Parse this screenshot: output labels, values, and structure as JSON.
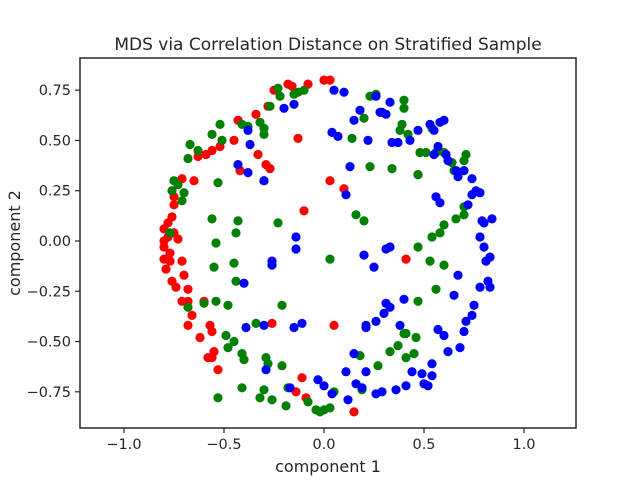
{
  "chart_data": {
    "type": "scatter",
    "title": "MDS via Correlation Distance on Stratified Sample",
    "xlabel": "component 1",
    "ylabel": "component 2",
    "xlim": [
      -1.22,
      1.26
    ],
    "ylim": [
      -0.93,
      0.91
    ],
    "xticks": [
      -1.0,
      -0.5,
      0.0,
      0.5,
      1.0
    ],
    "xtick_labels": [
      "−1.0",
      "−0.5",
      "0.0",
      "0.5",
      "1.0"
    ],
    "yticks": [
      0.75,
      0.5,
      0.25,
      0.0,
      -0.25,
      -0.5,
      -0.75
    ],
    "ytick_labels": [
      "0.75",
      "0.50",
      "0.25",
      "0.00",
      "−0.25",
      "−0.50",
      "−0.75"
    ],
    "grid": false,
    "legend": false,
    "series": [
      {
        "color": "#ff0000",
        "points": [
          [
            -0.16,
            0.77
          ],
          [
            -0.18,
            0.78
          ],
          [
            -0.08,
            0.78
          ],
          [
            0.0,
            0.8
          ],
          [
            0.03,
            0.8
          ],
          [
            -0.25,
            0.75
          ],
          [
            -0.28,
            0.67
          ],
          [
            -0.34,
            0.63
          ],
          [
            -0.43,
            0.6
          ],
          [
            -0.45,
            0.5
          ],
          [
            -0.52,
            0.47
          ],
          [
            -0.56,
            0.45
          ],
          [
            -0.59,
            0.43
          ],
          [
            -0.63,
            0.42
          ],
          [
            -0.33,
            0.43
          ],
          [
            -0.13,
            0.51
          ],
          [
            -0.42,
            0.35
          ],
          [
            -0.29,
            0.38
          ],
          [
            -0.65,
            0.3
          ],
          [
            -0.71,
            0.31
          ],
          [
            -0.27,
            0.36
          ],
          [
            -0.75,
            0.22
          ],
          [
            -0.75,
            0.18
          ],
          [
            0.03,
            0.3
          ],
          [
            0.1,
            0.26
          ],
          [
            -0.3,
            0.3
          ],
          [
            -0.1,
            0.15
          ],
          [
            0.47,
            0.33
          ],
          [
            -0.76,
            0.12
          ],
          [
            -0.78,
            0.09
          ],
          [
            -0.8,
            0.06
          ],
          [
            -0.75,
            0.04
          ],
          [
            -0.78,
            0.02
          ],
          [
            -0.8,
            0.0
          ],
          [
            -0.73,
            0.01
          ],
          [
            -0.8,
            -0.03
          ],
          [
            -0.77,
            -0.06
          ],
          [
            -0.8,
            -0.09
          ],
          [
            -0.79,
            -0.14
          ],
          [
            -0.77,
            -0.1
          ],
          [
            -0.71,
            -0.1
          ],
          [
            -0.76,
            -0.2
          ],
          [
            -0.7,
            -0.17
          ],
          [
            -0.68,
            -0.24
          ],
          [
            -0.74,
            -0.23
          ],
          [
            -0.68,
            -0.3
          ],
          [
            -0.71,
            -0.3
          ],
          [
            -0.6,
            -0.3
          ],
          [
            -0.66,
            -0.37
          ],
          [
            -0.68,
            -0.42
          ],
          [
            -0.57,
            -0.42
          ],
          [
            -0.56,
            -0.45
          ],
          [
            -0.62,
            -0.48
          ],
          [
            -0.55,
            -0.55
          ],
          [
            -0.58,
            -0.58
          ],
          [
            -0.56,
            -0.58
          ],
          [
            -0.53,
            -0.64
          ],
          [
            -0.26,
            -0.41
          ],
          [
            0.05,
            -0.42
          ],
          [
            -0.11,
            -0.68
          ],
          [
            -0.14,
            -0.75
          ],
          [
            -0.09,
            -0.78
          ],
          [
            0.15,
            -0.85
          ],
          [
            0.41,
            -0.09
          ]
        ]
      },
      {
        "color": "#008000",
        "points": [
          [
            -0.23,
            0.76
          ],
          [
            -0.22,
            0.72
          ],
          [
            -0.15,
            0.73
          ],
          [
            -0.13,
            0.74
          ],
          [
            -0.1,
            0.75
          ],
          [
            -0.27,
            0.67
          ],
          [
            -0.32,
            0.59
          ],
          [
            -0.3,
            0.56
          ],
          [
            -0.41,
            0.58
          ],
          [
            -0.52,
            0.58
          ],
          [
            -0.51,
            0.5
          ],
          [
            -0.56,
            0.53
          ],
          [
            -0.67,
            0.48
          ],
          [
            -0.63,
            0.45
          ],
          [
            -0.68,
            0.41
          ],
          [
            -0.75,
            0.3
          ],
          [
            -0.73,
            0.28
          ],
          [
            -0.7,
            0.24
          ],
          [
            -0.71,
            0.2
          ],
          [
            -0.76,
            0.25
          ],
          [
            -0.53,
            0.29
          ],
          [
            -0.23,
            0.09
          ],
          [
            0.23,
            0.37
          ],
          [
            0.2,
            0.1
          ],
          [
            0.16,
            0.13
          ],
          [
            -0.43,
            0.1
          ],
          [
            -0.56,
            0.11
          ],
          [
            -0.54,
            -0.01
          ],
          [
            -0.44,
            0.04
          ],
          [
            -0.45,
            -0.11
          ],
          [
            -0.55,
            -0.13
          ],
          [
            -0.77,
            0.04
          ],
          [
            0.03,
            -0.09
          ],
          [
            -0.44,
            -0.2
          ],
          [
            -0.6,
            -0.31
          ],
          [
            -0.54,
            -0.3
          ],
          [
            -0.48,
            -0.32
          ],
          [
            -0.68,
            -0.33
          ],
          [
            -0.21,
            -0.32
          ],
          [
            -0.34,
            -0.41
          ],
          [
            -0.49,
            -0.47
          ],
          [
            -0.45,
            -0.5
          ],
          [
            -0.41,
            -0.56
          ],
          [
            -0.48,
            -0.53
          ],
          [
            -0.4,
            -0.59
          ],
          [
            -0.29,
            -0.58
          ],
          [
            -0.28,
            -0.61
          ],
          [
            -0.21,
            -0.62
          ],
          [
            -0.18,
            -0.73
          ],
          [
            -0.3,
            -0.74
          ],
          [
            -0.41,
            -0.73
          ],
          [
            -0.53,
            -0.78
          ],
          [
            -0.32,
            -0.78
          ],
          [
            -0.26,
            -0.79
          ],
          [
            -0.19,
            -0.82
          ],
          [
            -0.08,
            -0.8
          ],
          [
            -0.04,
            -0.84
          ],
          [
            -0.02,
            -0.85
          ],
          [
            0.0,
            -0.84
          ],
          [
            0.03,
            -0.83
          ],
          [
            0.05,
            -0.75
          ],
          [
            0.19,
            -0.74
          ],
          [
            0.27,
            -0.62
          ],
          [
            0.18,
            -0.57
          ],
          [
            0.33,
            -0.55
          ],
          [
            0.41,
            -0.58
          ],
          [
            0.45,
            -0.56
          ],
          [
            0.46,
            -0.48
          ],
          [
            0.4,
            -0.46
          ],
          [
            0.37,
            -0.52
          ],
          [
            0.47,
            -0.3
          ],
          [
            0.41,
            -0.46
          ],
          [
            0.56,
            -0.24
          ],
          [
            0.6,
            -0.12
          ],
          [
            0.53,
            -0.1
          ],
          [
            0.47,
            -0.03
          ],
          [
            0.54,
            0.02
          ],
          [
            0.58,
            0.04
          ],
          [
            0.6,
            0.08
          ],
          [
            0.7,
            0.13
          ],
          [
            0.66,
            0.11
          ],
          [
            0.7,
            0.17
          ],
          [
            0.65,
            0.35
          ],
          [
            0.7,
            0.4
          ],
          [
            0.71,
            0.43
          ],
          [
            0.64,
            0.39
          ],
          [
            0.56,
            0.44
          ],
          [
            0.51,
            0.44
          ],
          [
            0.48,
            0.44
          ],
          [
            0.34,
            0.36
          ],
          [
            0.38,
            0.55
          ],
          [
            0.42,
            0.53
          ],
          [
            0.4,
            0.66
          ],
          [
            0.4,
            0.7
          ],
          [
            0.54,
            0.56
          ],
          [
            0.6,
            0.44
          ],
          [
            -0.3,
            0.53
          ],
          [
            -0.38,
            0.57
          ],
          [
            0.39,
            0.58
          ],
          [
            0.47,
            0.33
          ],
          [
            0.14,
            0.51
          ],
          [
            0.2,
            0.61
          ],
          [
            0.26,
            0.73
          ],
          [
            0.23,
            0.72
          ]
        ]
      },
      {
        "color": "#0000ff",
        "points": [
          [
            0.05,
            0.75
          ],
          [
            0.1,
            0.74
          ],
          [
            0.26,
            0.72
          ],
          [
            0.28,
            0.64
          ],
          [
            0.33,
            0.69
          ],
          [
            0.31,
            0.63
          ],
          [
            0.34,
            0.49
          ],
          [
            0.37,
            0.49
          ],
          [
            0.43,
            0.5
          ],
          [
            0.47,
            0.55
          ],
          [
            0.55,
            0.55
          ],
          [
            0.53,
            0.58
          ],
          [
            0.58,
            0.59
          ],
          [
            0.6,
            0.6
          ],
          [
            0.57,
            0.47
          ],
          [
            0.55,
            0.43
          ],
          [
            0.61,
            0.43
          ],
          [
            0.62,
            0.4
          ],
          [
            0.66,
            0.35
          ],
          [
            0.67,
            0.32
          ],
          [
            0.7,
            0.35
          ],
          [
            0.74,
            0.31
          ],
          [
            0.74,
            0.23
          ],
          [
            0.72,
            0.18
          ],
          [
            0.76,
            0.25
          ],
          [
            0.78,
            0.24
          ],
          [
            0.84,
            0.11
          ],
          [
            0.79,
            0.1
          ],
          [
            0.8,
            0.09
          ],
          [
            0.78,
            0.02
          ],
          [
            0.8,
            -0.03
          ],
          [
            0.83,
            -0.08
          ],
          [
            0.81,
            -0.1
          ],
          [
            0.82,
            -0.2
          ],
          [
            0.78,
            -0.23
          ],
          [
            0.83,
            -0.23
          ],
          [
            0.75,
            -0.32
          ],
          [
            0.74,
            -0.37
          ],
          [
            0.71,
            -0.4
          ],
          [
            0.7,
            -0.45
          ],
          [
            0.68,
            -0.53
          ],
          [
            0.62,
            -0.55
          ],
          [
            0.6,
            -0.47
          ],
          [
            0.57,
            -0.44
          ],
          [
            0.54,
            -0.61
          ],
          [
            0.54,
            -0.67
          ],
          [
            0.5,
            -0.71
          ],
          [
            0.52,
            -0.72
          ],
          [
            0.49,
            -0.66
          ],
          [
            0.44,
            -0.65
          ],
          [
            0.41,
            -0.72
          ],
          [
            0.36,
            -0.74
          ],
          [
            0.29,
            -0.75
          ],
          [
            0.26,
            -0.76
          ],
          [
            0.19,
            -0.73
          ],
          [
            0.21,
            -0.65
          ],
          [
            0.15,
            -0.56
          ],
          [
            0.11,
            -0.65
          ],
          [
            0.16,
            -0.71
          ],
          [
            0.12,
            -0.79
          ],
          [
            0.04,
            -0.76
          ],
          [
            0.0,
            -0.72
          ],
          [
            -0.03,
            -0.69
          ],
          [
            -0.17,
            -0.73
          ],
          [
            -0.11,
            -0.41
          ],
          [
            -0.15,
            -0.43
          ],
          [
            -0.3,
            -0.42
          ],
          [
            -0.39,
            -0.43
          ],
          [
            -0.29,
            -0.64
          ],
          [
            0.31,
            -0.31
          ],
          [
            0.4,
            -0.29
          ],
          [
            0.33,
            -0.33
          ],
          [
            0.3,
            -0.36
          ],
          [
            0.26,
            -0.4
          ],
          [
            0.21,
            -0.42
          ],
          [
            0.38,
            -0.42
          ],
          [
            0.21,
            -0.43
          ],
          [
            0.31,
            -0.04
          ],
          [
            0.25,
            -0.13
          ],
          [
            0.33,
            -0.03
          ],
          [
            0.2,
            -0.07
          ],
          [
            0.11,
            0.23
          ],
          [
            0.13,
            0.37
          ],
          [
            0.22,
            0.5
          ],
          [
            0.07,
            0.52
          ],
          [
            0.04,
            0.54
          ],
          [
            -0.2,
            0.66
          ],
          [
            -0.15,
            0.68
          ],
          [
            -0.38,
            0.55
          ],
          [
            -0.37,
            0.48
          ],
          [
            -0.43,
            0.38
          ],
          [
            -0.38,
            0.34
          ],
          [
            -0.3,
            0.3
          ],
          [
            -0.26,
            -0.12
          ],
          [
            -0.4,
            -0.21
          ],
          [
            -0.14,
            -0.04
          ],
          [
            -0.14,
            0.02
          ],
          [
            -0.26,
            -0.1
          ],
          [
            0.56,
            0.22
          ],
          [
            0.58,
            0.19
          ],
          [
            0.67,
            -0.17
          ],
          [
            0.65,
            -0.27
          ],
          [
            0.29,
            0.64
          ],
          [
            0.15,
            0.6
          ],
          [
            0.18,
            0.65
          ]
        ]
      }
    ]
  }
}
